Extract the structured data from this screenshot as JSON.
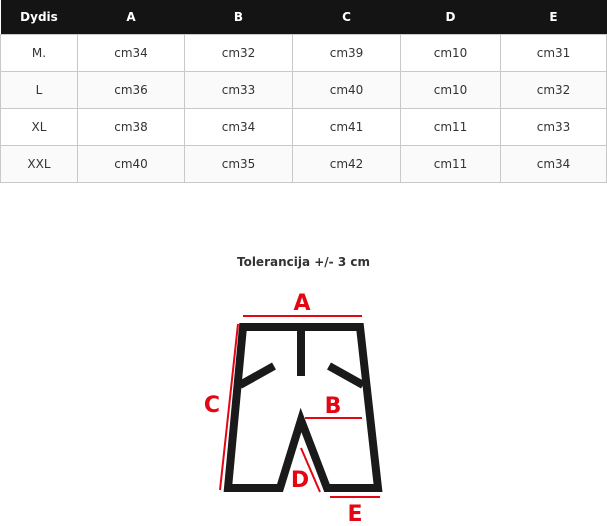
{
  "table": {
    "headers": [
      "Dydis",
      "A",
      "B",
      "C",
      "D",
      "E"
    ],
    "rows": [
      [
        "M.",
        "cm34",
        "cm32",
        "cm39",
        "cm10",
        "cm31"
      ],
      [
        "L",
        "cm36",
        "cm33",
        "cm40",
        "cm10",
        "cm32"
      ],
      [
        "XL",
        "cm38",
        "cm34",
        "cm41",
        "cm11",
        "cm33"
      ],
      [
        "XXL",
        "cm40",
        "cm35",
        "cm42",
        "cm11",
        "cm34"
      ]
    ]
  },
  "tolerance": "Tolerancija +/- 3 cm",
  "diagram": {
    "labels": {
      "a": "A",
      "b": "B",
      "c": "C",
      "d": "D",
      "e": "E"
    },
    "line_color": "#1a1a1a",
    "accent": "#e30613"
  }
}
